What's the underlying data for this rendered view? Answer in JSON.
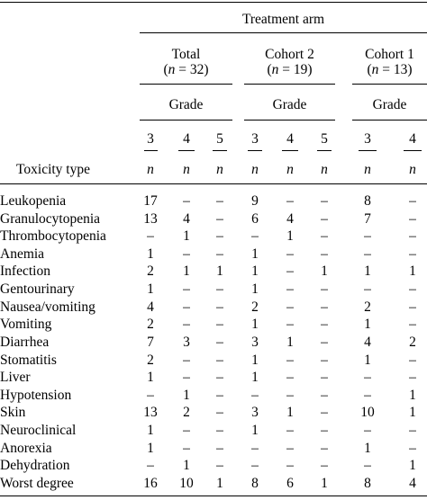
{
  "header": {
    "title": "Treatment arm",
    "groups": [
      {
        "name": "Total",
        "count": "(n = 32)",
        "grade_label": "Grade",
        "grades": [
          "3",
          "4",
          "5"
        ]
      },
      {
        "name": "Cohort 2",
        "count": "(n = 19)",
        "grade_label": "Grade",
        "grades": [
          "3",
          "4",
          "5"
        ]
      },
      {
        "name": "Cohort 1",
        "count": "(n = 13)",
        "grade_label": "Grade",
        "grades": [
          "3",
          "4"
        ]
      }
    ],
    "row_label": "Toxicity type",
    "n_label": "n"
  },
  "rows": [
    {
      "name": "Leukopenia",
      "values": [
        "17",
        "–",
        "–",
        "9",
        "–",
        "–",
        "8",
        "–"
      ]
    },
    {
      "name": "Granulocytopenia",
      "values": [
        "13",
        "4",
        "–",
        "6",
        "4",
        "–",
        "7",
        "–"
      ]
    },
    {
      "name": "Thrombocytopenia",
      "values": [
        "–",
        "1",
        "–",
        "–",
        "1",
        "–",
        "–",
        "–"
      ]
    },
    {
      "name": "Anemia",
      "values": [
        "1",
        "–",
        "–",
        "1",
        "–",
        "–",
        "–",
        "–"
      ]
    },
    {
      "name": "Infection",
      "values": [
        "2",
        "1",
        "1",
        "1",
        "–",
        "1",
        "1",
        "1"
      ]
    },
    {
      "name": "Gentourinary",
      "values": [
        "1",
        "–",
        "–",
        "1",
        "–",
        "–",
        "–",
        "–"
      ]
    },
    {
      "name": "Nausea/vomiting",
      "values": [
        "4",
        "–",
        "–",
        "2",
        "–",
        "–",
        "2",
        "–"
      ]
    },
    {
      "name": "Vomiting",
      "values": [
        "2",
        "–",
        "–",
        "1",
        "–",
        "–",
        "1",
        "–"
      ]
    },
    {
      "name": "Diarrhea",
      "values": [
        "7",
        "3",
        "–",
        "3",
        "1",
        "–",
        "4",
        "2"
      ]
    },
    {
      "name": "Stomatitis",
      "values": [
        "2",
        "–",
        "–",
        "1",
        "–",
        "–",
        "1",
        "–"
      ]
    },
    {
      "name": "Liver",
      "values": [
        "1",
        "–",
        "–",
        "1",
        "–",
        "–",
        "–",
        "–"
      ]
    },
    {
      "name": "Hypotension",
      "values": [
        "–",
        "1",
        "–",
        "–",
        "–",
        "–",
        "–",
        "1"
      ]
    },
    {
      "name": "Skin",
      "values": [
        "13",
        "2",
        "–",
        "3",
        "1",
        "–",
        "10",
        "1"
      ]
    },
    {
      "name": "Neuroclinical",
      "values": [
        "1",
        "–",
        "–",
        "1",
        "–",
        "–",
        "–",
        "–"
      ]
    },
    {
      "name": "Anorexia",
      "values": [
        "1",
        "–",
        "–",
        "–",
        "–",
        "–",
        "1",
        "–"
      ]
    },
    {
      "name": "Dehydration",
      "values": [
        "–",
        "1",
        "–",
        "–",
        "–",
        "–",
        "–",
        "1"
      ]
    },
    {
      "name": "Worst degree",
      "values": [
        "16",
        "10",
        "1",
        "8",
        "6",
        "1",
        "8",
        "4"
      ]
    }
  ]
}
